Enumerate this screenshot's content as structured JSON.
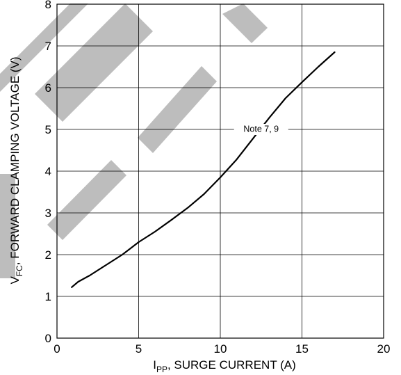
{
  "chart_data": {
    "type": "line",
    "title": "",
    "xlabel": {
      "main": "I",
      "sub": "PP",
      "rest": ",  SURGE CURRENT (A)"
    },
    "ylabel": {
      "main": "V",
      "sub": "FC",
      "rest": ", FORWARD CLAMPING VOLTAGE (V)"
    },
    "xlim": [
      0,
      20
    ],
    "ylim": [
      0,
      8
    ],
    "xticks": [
      "0",
      "5",
      "10",
      "15",
      "20"
    ],
    "yticks": [
      "0",
      "1",
      "2",
      "3",
      "4",
      "5",
      "6",
      "7",
      "8"
    ],
    "grid": true,
    "series": [
      {
        "x": [
          0.9,
          1.3,
          2,
          3,
          4,
          4.5,
          5,
          6,
          7,
          8,
          9,
          10,
          11,
          12,
          13,
          14,
          15,
          16,
          17
        ],
        "y": [
          1.22,
          1.35,
          1.5,
          1.75,
          2.0,
          2.15,
          2.3,
          2.55,
          2.83,
          3.12,
          3.45,
          3.85,
          4.28,
          4.78,
          5.28,
          5.75,
          6.13,
          6.5,
          6.85
        ]
      }
    ],
    "annotations": [
      {
        "text": "Note 7, 9",
        "x": 12.5,
        "y": 5
      }
    ],
    "watermark": {
      "text": "DEL",
      "color": "#bdbdbd"
    },
    "colors": {
      "line": "#000000",
      "grid": "#000000",
      "watermark": "#bdbdbd"
    }
  }
}
